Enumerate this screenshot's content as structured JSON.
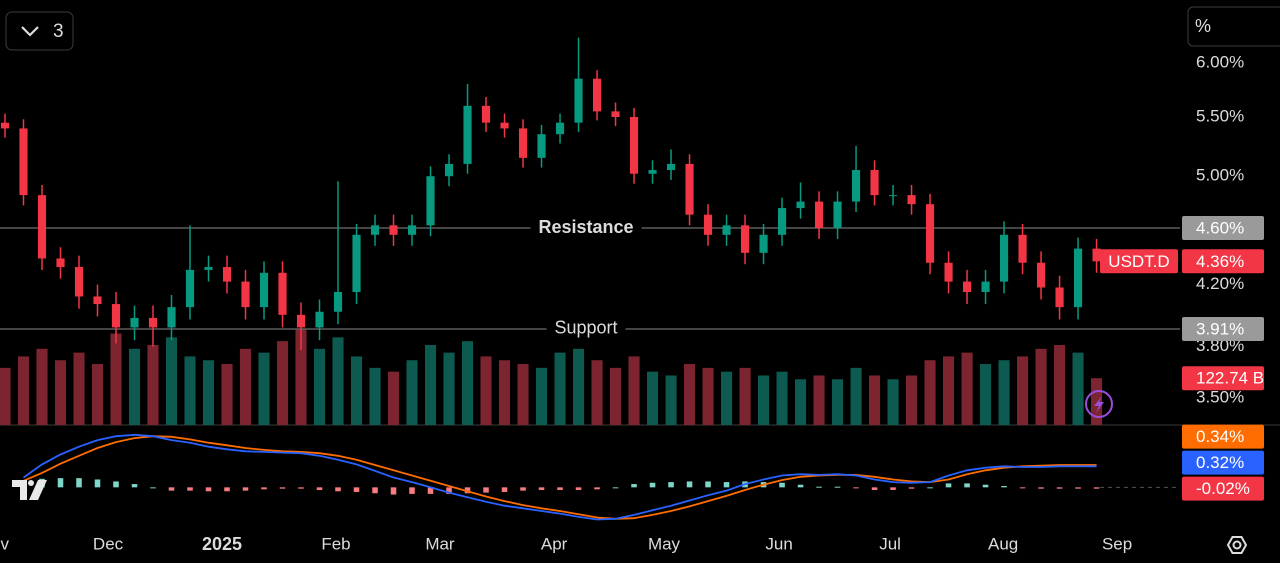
{
  "ui": {
    "indicator_count": "3",
    "scale_mode": "%"
  },
  "chart_data": {
    "type": "candlestick",
    "name": "USDT.D",
    "last_label": "4.36%",
    "up_color": "#089981",
    "down_color": "#f23645",
    "log_scale": true,
    "ylim": [
      3.35,
      6.64
    ],
    "yticks": [
      {
        "value": 3.5,
        "label": "3.50%"
      },
      {
        "value": 3.8,
        "label": "3.80%"
      },
      {
        "value": 4.2,
        "label": "4.20%"
      },
      {
        "value": 5.0,
        "label": "5.00%"
      },
      {
        "value": 5.5,
        "label": "5.50%"
      },
      {
        "value": 6.0,
        "label": "6.00%"
      }
    ],
    "xlim": [
      -0.27,
      63.51
    ],
    "xticks": [
      {
        "value": -0.6,
        "label": "Nov"
      },
      {
        "value": 5.57,
        "label": "Dec"
      },
      {
        "value": 11.73,
        "label": "2025"
      },
      {
        "value": 17.89,
        "label": "Feb"
      },
      {
        "value": 23.51,
        "label": "Mar"
      },
      {
        "value": 29.68,
        "label": "Apr"
      },
      {
        "value": 35.62,
        "label": "May"
      },
      {
        "value": 41.84,
        "label": "Jun"
      },
      {
        "value": 47.84,
        "label": "Jul"
      },
      {
        "value": 53.95,
        "label": "Aug"
      },
      {
        "value": 60.11,
        "label": "Sep"
      }
    ],
    "open": [
      5.45,
      5.4,
      4.85,
      4.38,
      4.32,
      4.12,
      4.07,
      3.92,
      3.98,
      3.92,
      4.05,
      4.3,
      4.32,
      4.22,
      4.05,
      4.28,
      4.0,
      3.92,
      4.02,
      4.15,
      4.55,
      4.62,
      4.55,
      4.62,
      5.0,
      5.1,
      5.6,
      5.45,
      5.4,
      5.15,
      5.35,
      5.45,
      5.85,
      5.55,
      5.5,
      5.02,
      5.05,
      5.1,
      4.7,
      4.55,
      4.62,
      4.42,
      4.55,
      4.75,
      4.8,
      4.6,
      4.8,
      5.05,
      4.85,
      4.85,
      4.78,
      4.35,
      4.22,
      4.15,
      4.22,
      4.55,
      4.35,
      4.18,
      4.05,
      4.45
    ],
    "high": [
      5.53,
      5.48,
      4.93,
      4.46,
      4.4,
      4.2,
      4.15,
      4.06,
      4.06,
      4.13,
      4.62,
      4.4,
      4.4,
      4.3,
      4.36,
      4.36,
      4.08,
      4.1,
      4.96,
      4.63,
      4.7,
      4.7,
      4.7,
      5.08,
      5.18,
      5.8,
      5.68,
      5.53,
      5.48,
      5.43,
      5.53,
      6.25,
      5.93,
      5.63,
      5.58,
      5.13,
      5.22,
      5.18,
      4.78,
      4.7,
      4.7,
      4.63,
      4.83,
      4.95,
      4.88,
      4.88,
      5.25,
      5.13,
      4.93,
      4.93,
      4.86,
      4.43,
      4.3,
      4.3,
      4.65,
      4.63,
      4.43,
      4.26,
      4.53,
      4.52
    ],
    "low": [
      5.32,
      4.77,
      4.3,
      4.24,
      4.04,
      3.99,
      3.82,
      3.84,
      3.8,
      3.84,
      3.97,
      4.22,
      4.14,
      3.97,
      3.97,
      3.92,
      3.78,
      3.84,
      3.94,
      4.07,
      4.47,
      4.47,
      4.47,
      4.54,
      4.92,
      5.02,
      5.37,
      5.32,
      5.07,
      5.07,
      5.27,
      5.37,
      5.47,
      5.42,
      4.94,
      4.94,
      4.97,
      4.62,
      4.47,
      4.47,
      4.34,
      4.34,
      4.47,
      4.67,
      4.52,
      4.52,
      4.72,
      4.77,
      4.77,
      4.7,
      4.27,
      4.14,
      4.07,
      4.07,
      4.14,
      4.27,
      4.1,
      3.97,
      3.97,
      4.28
    ],
    "close": [
      5.4,
      4.85,
      4.38,
      4.32,
      4.12,
      4.07,
      3.92,
      3.98,
      3.92,
      4.05,
      4.3,
      4.32,
      4.22,
      4.05,
      4.28,
      4.0,
      3.92,
      4.02,
      4.15,
      4.55,
      4.62,
      4.55,
      4.62,
      5.0,
      5.1,
      5.6,
      5.45,
      5.4,
      5.15,
      5.35,
      5.45,
      5.85,
      5.55,
      5.5,
      5.02,
      5.05,
      5.1,
      4.7,
      4.55,
      4.62,
      4.42,
      4.55,
      4.75,
      4.8,
      4.6,
      4.8,
      5.05,
      4.85,
      4.85,
      4.78,
      4.35,
      4.22,
      4.15,
      4.22,
      4.55,
      4.35,
      4.18,
      4.05,
      4.45,
      4.36
    ],
    "levels": [
      {
        "name": "Resistance",
        "value": 4.6,
        "label": "4.60%"
      },
      {
        "name": "Support",
        "value": 3.91,
        "label": "3.91%"
      }
    ],
    "volume": {
      "ylim": [
        0,
        420
      ],
      "last_label": "122.74 B",
      "up_color": "#0d5a50",
      "down_color": "#7c2530",
      "values": [
        150,
        180,
        200,
        170,
        190,
        160,
        240,
        200,
        210,
        230,
        180,
        170,
        160,
        200,
        190,
        220,
        250,
        200,
        230,
        180,
        150,
        140,
        170,
        210,
        190,
        220,
        180,
        170,
        160,
        150,
        190,
        200,
        170,
        150,
        180,
        140,
        130,
        160,
        150,
        140,
        150,
        130,
        140,
        120,
        130,
        120,
        150,
        130,
        120,
        130,
        170,
        180,
        190,
        160,
        170,
        180,
        200,
        210,
        190,
        122.74
      ]
    },
    "macd": {
      "ylim": [
        -0.65,
        0.95
      ],
      "macd": {
        "color": "#2962ff",
        "last_label": "0.32%",
        "values": [
          null,
          0.15,
          0.35,
          0.5,
          0.62,
          0.72,
          0.78,
          0.8,
          0.78,
          0.72,
          0.68,
          0.62,
          0.58,
          0.55,
          0.54,
          0.53,
          0.52,
          0.48,
          0.42,
          0.35,
          0.25,
          0.15,
          0.08,
          0.0,
          -0.08,
          -0.15,
          -0.22,
          -0.28,
          -0.32,
          -0.36,
          -0.4,
          -0.45,
          -0.49,
          -0.48,
          -0.42,
          -0.35,
          -0.28,
          -0.2,
          -0.12,
          -0.05,
          0.05,
          0.12,
          0.18,
          0.2,
          0.19,
          0.2,
          0.18,
          0.12,
          0.08,
          0.07,
          0.08,
          0.18,
          0.26,
          0.3,
          0.32,
          0.31,
          0.31,
          0.32,
          0.32,
          0.32
        ]
      },
      "signal": {
        "color": "#ff6d00",
        "last_label": "0.34%",
        "values": [
          null,
          0.1,
          0.22,
          0.36,
          0.48,
          0.6,
          0.69,
          0.75,
          0.78,
          0.77,
          0.73,
          0.68,
          0.64,
          0.6,
          0.57,
          0.55,
          0.54,
          0.52,
          0.48,
          0.42,
          0.34,
          0.26,
          0.18,
          0.1,
          0.02,
          -0.06,
          -0.14,
          -0.21,
          -0.27,
          -0.32,
          -0.36,
          -0.41,
          -0.46,
          -0.48,
          -0.47,
          -0.42,
          -0.36,
          -0.29,
          -0.21,
          -0.13,
          -0.04,
          0.04,
          0.11,
          0.16,
          0.18,
          0.19,
          0.19,
          0.16,
          0.12,
          0.09,
          0.08,
          0.12,
          0.2,
          0.26,
          0.3,
          0.32,
          0.33,
          0.34,
          0.34,
          0.34
        ]
      },
      "histogram": {
        "up_color": "#7fd6c8",
        "down_color": "#f77c80",
        "last_label": "-0.02%",
        "values": [
          null,
          0.05,
          0.13,
          0.14,
          0.14,
          0.12,
          0.09,
          0.05,
          0,
          -0.05,
          -0.05,
          -0.06,
          -0.06,
          -0.05,
          -0.03,
          -0.02,
          -0.02,
          -0.04,
          -0.06,
          -0.07,
          -0.09,
          -0.11,
          -0.1,
          -0.1,
          -0.1,
          -0.09,
          -0.08,
          -0.07,
          -0.05,
          -0.04,
          -0.04,
          -0.04,
          -0.03,
          0,
          0.05,
          0.07,
          0.08,
          0.09,
          0.09,
          0.08,
          0.09,
          0.08,
          0.07,
          0.04,
          0.01,
          0.01,
          -0.01,
          -0.04,
          -0.04,
          -0.02,
          0,
          0.06,
          0.06,
          0.04,
          0.02,
          -0.01,
          -0.02,
          -0.02,
          -0.02,
          -0.02
        ]
      }
    }
  }
}
